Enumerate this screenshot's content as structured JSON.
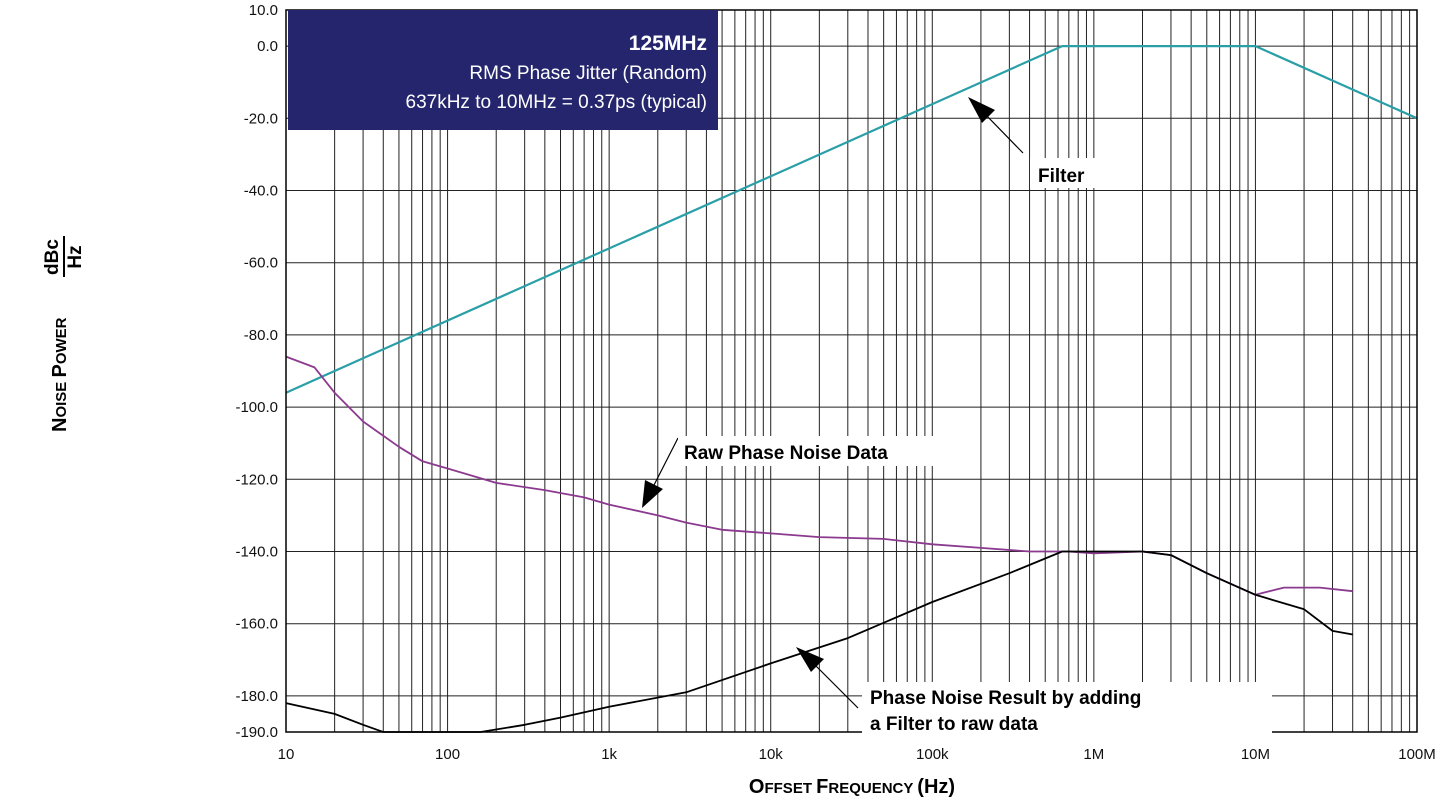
{
  "chart_data": {
    "type": "line",
    "x_scale": "log",
    "xlim": [
      10,
      100000000
    ],
    "ylim": [
      -190,
      10
    ],
    "grid": true,
    "x_ticks": [
      "10",
      "100",
      "1k",
      "10k",
      "100k",
      "1M",
      "10M",
      "100M"
    ],
    "y_ticks": [
      "10.0",
      "0.0",
      "-20.0",
      "-40.0",
      "-60.0",
      "-80.0",
      "-100.0",
      "-120.0",
      "-140.0",
      "-160.0",
      "-180.0",
      "-190.0"
    ],
    "y_tick_values": [
      10,
      0,
      -20,
      -40,
      -60,
      -80,
      -100,
      -120,
      -140,
      -160,
      -180,
      -190
    ],
    "xlabel": "Offset Frequency (Hz)",
    "ylabel_main": "Noise Power",
    "ylabel_unit_num": "dBc",
    "ylabel_unit_den": "Hz",
    "info_box": {
      "title": "125MHz",
      "line1": "RMS Phase Jitter (Random)",
      "line2": "637kHz  to 10MHz = 0.37ps (typical)",
      "bg_color": "#25256e",
      "text_color": "#ffffff"
    },
    "annotations": {
      "filter": "Filter",
      "raw": "Raw Phase Noise Data",
      "result_line1": "Phase Noise Result by adding",
      "result_line2": "a Filter to raw data"
    },
    "series": [
      {
        "color": "#2a9fa8",
        "x": [
          10,
          637000,
          10000000,
          100000000
        ],
        "y": [
          -96,
          0,
          0,
          -20
        ]
      },
      {
        "color": "#8b3a8f",
        "x": [
          10,
          15,
          20,
          30,
          50,
          70,
          100,
          200,
          400,
          700,
          1000,
          2000,
          3000,
          5000,
          10000,
          20000,
          50000,
          100000,
          200000,
          400000,
          700000,
          1000000,
          2000000,
          3000000,
          5000000,
          10000000,
          15000000,
          25000000,
          40000000
        ],
        "y": [
          -86,
          -89,
          -96,
          -104,
          -111,
          -115,
          -117,
          -121,
          -123,
          -125,
          -127,
          -130,
          -132,
          -134,
          -135,
          -136,
          -136.5,
          -138,
          -139,
          -140,
          -140,
          -140.5,
          -140,
          -141,
          -146,
          -152,
          -150,
          -150,
          -151
        ]
      },
      {
        "color": "#000000",
        "x": [
          10,
          20,
          30,
          40,
          160,
          300,
          500,
          1000,
          3000,
          10000,
          30000,
          100000,
          300000,
          637000,
          1000000,
          2000000,
          3000000,
          5000000,
          10000000,
          20000000,
          30000000,
          40000000
        ],
        "y": [
          -182,
          -185,
          -188,
          -190,
          -190,
          -188,
          -186,
          -183,
          -179,
          -171,
          -164,
          -154,
          -146,
          -140,
          -140,
          -140,
          -141,
          -146,
          -152,
          -156,
          -162,
          -163
        ]
      }
    ]
  }
}
